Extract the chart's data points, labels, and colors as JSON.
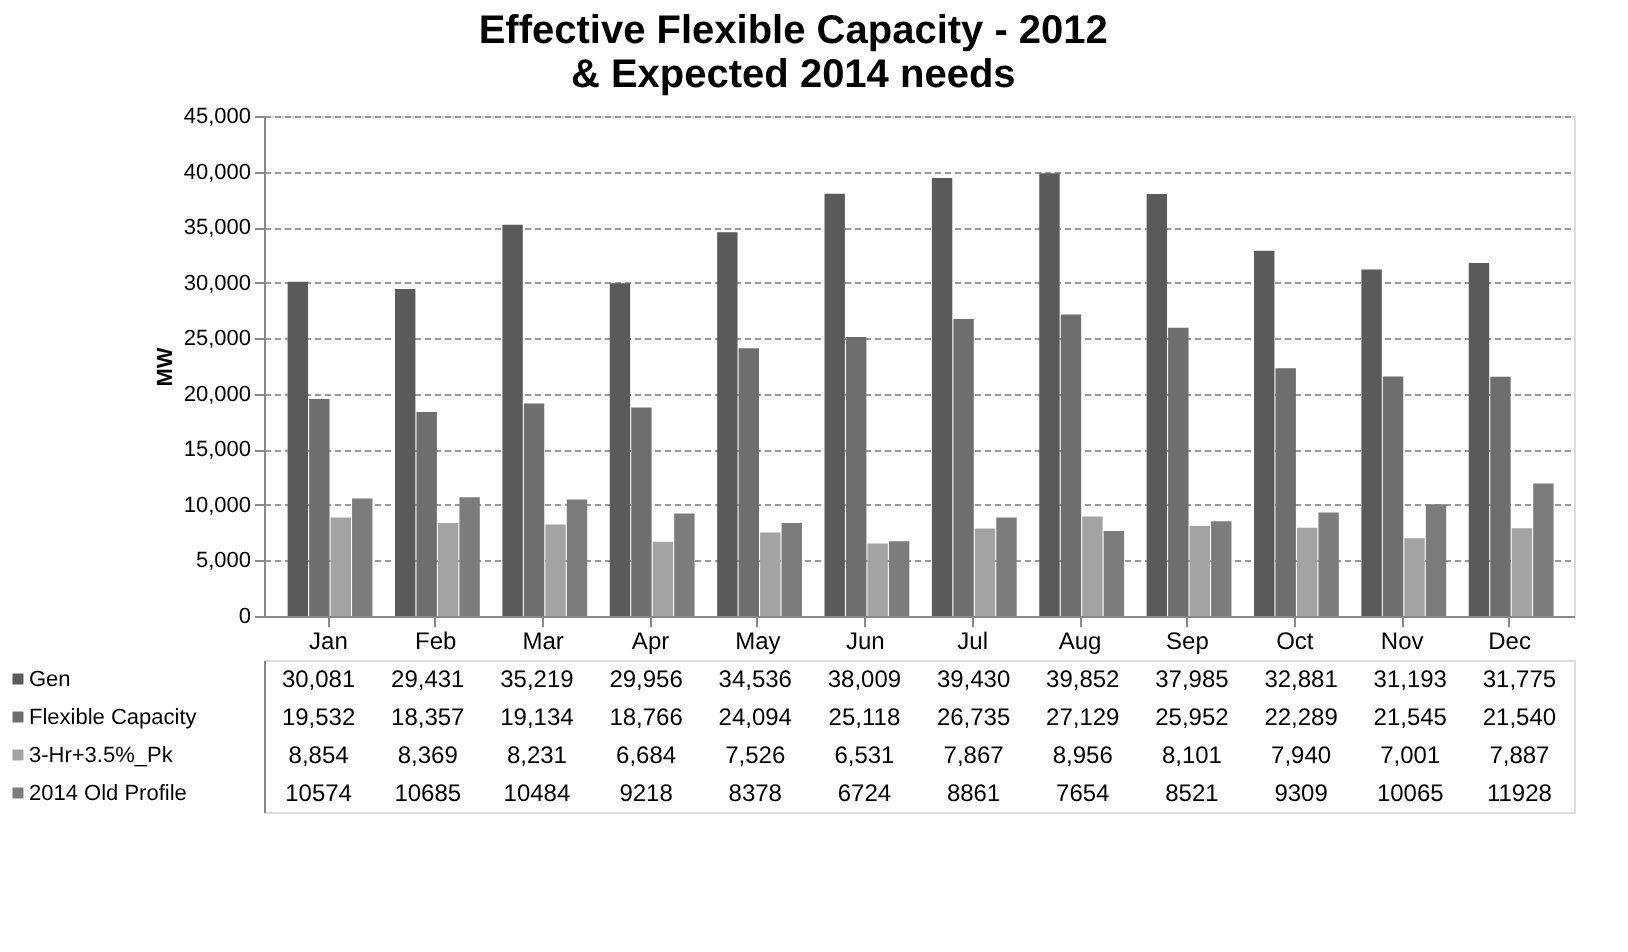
{
  "chart_data": {
    "type": "bar",
    "title": "Effective Flexible Capacity - 2012\n& Expected 2014 needs",
    "ylabel": "MW",
    "categories": [
      "Jan",
      "Feb",
      "Mar",
      "Apr",
      "May",
      "Jun",
      "Jul",
      "Aug",
      "Sep",
      "Oct",
      "Nov",
      "Dec"
    ],
    "series": [
      {
        "name": "Gen",
        "color": "#5a5a5a",
        "values": [
          30081,
          29431,
          35219,
          29956,
          34536,
          38009,
          39430,
          39852,
          37985,
          32881,
          31193,
          31775
        ],
        "value_labels": [
          "30,081",
          "29,431",
          "35,219",
          "29,956",
          "34,536",
          "38,009",
          "39,430",
          "39,852",
          "37,985",
          "32,881",
          "31,193",
          "31,775"
        ]
      },
      {
        "name": "Flexible Capacity",
        "color": "#6e6e6e",
        "values": [
          19532,
          18357,
          19134,
          18766,
          24094,
          25118,
          26735,
          27129,
          25952,
          22289,
          21545,
          21540
        ],
        "value_labels": [
          "19,532",
          "18,357",
          "19,134",
          "18,766",
          "24,094",
          "25,118",
          "26,735",
          "27,129",
          "25,952",
          "22,289",
          "21,545",
          "21,540"
        ]
      },
      {
        "name": "3-Hr+3.5%_Pk",
        "color": "#a3a3a3",
        "values": [
          8854,
          8369,
          8231,
          6684,
          7526,
          6531,
          7867,
          8956,
          8101,
          7940,
          7001,
          7887
        ],
        "value_labels": [
          "8,854",
          "8,369",
          "8,231",
          "6,684",
          "7,526",
          "6,531",
          "7,867",
          "8,956",
          "8,101",
          "7,940",
          "7,001",
          "7,887"
        ]
      },
      {
        "name": "2014 Old Profile",
        "color": "#7c7c7c",
        "values": [
          10574,
          10685,
          10484,
          9218,
          8378,
          6724,
          8861,
          7654,
          8521,
          9309,
          10065,
          11928
        ],
        "value_labels": [
          "10574",
          "10685",
          "10484",
          "9218",
          "8378",
          "6724",
          "8861",
          "7654",
          "8521",
          "9309",
          "10065",
          "11928"
        ]
      }
    ],
    "ylim": [
      0,
      45000
    ],
    "yticks": [
      {
        "value": 0,
        "label": "0"
      },
      {
        "value": 5000,
        "label": "5,000"
      },
      {
        "value": 10000,
        "label": "10,000"
      },
      {
        "value": 15000,
        "label": "15,000"
      },
      {
        "value": 20000,
        "label": "20,000"
      },
      {
        "value": 25000,
        "label": "25,000"
      },
      {
        "value": 30000,
        "label": "30,000"
      },
      {
        "value": 35000,
        "label": "35,000"
      },
      {
        "value": 40000,
        "label": "40,000"
      },
      {
        "value": 45000,
        "label": "45,000"
      }
    ],
    "grid": "y",
    "legend": "bottom"
  }
}
